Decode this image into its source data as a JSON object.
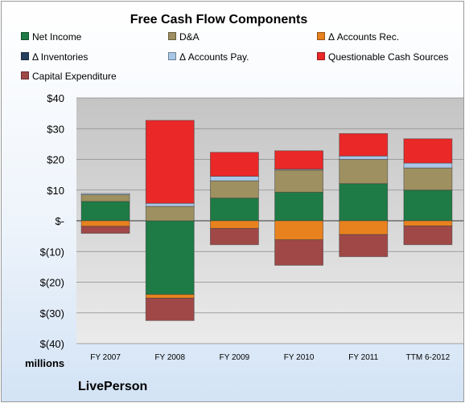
{
  "chart_data": {
    "type": "bar",
    "stacked": true,
    "title": "Free Cash Flow Components",
    "units_label": "millions",
    "company": "LivePerson",
    "categories": [
      "FY 2007",
      "FY 2008",
      "FY 2009",
      "FY 2010",
      "FY 2011",
      "TTM 6-2012"
    ],
    "ylim": [
      -40,
      40
    ],
    "yticks": [
      {
        "value": 40,
        "label": "$40"
      },
      {
        "value": 30,
        "label": "$30"
      },
      {
        "value": 20,
        "label": "$20"
      },
      {
        "value": 10,
        "label": "$10"
      },
      {
        "value": 0,
        "label": "$-"
      },
      {
        "value": -10,
        "label": "$(10)"
      },
      {
        "value": -20,
        "label": "$(20)"
      },
      {
        "value": -30,
        "label": "$(30)"
      },
      {
        "value": -40,
        "label": "$(40)"
      }
    ],
    "grid": true,
    "legend_position": "top",
    "series": [
      {
        "name": "Net Income",
        "color": "#1e7b45",
        "values": [
          6.3,
          -24.0,
          7.4,
          9.3,
          12.1,
          10.0
        ]
      },
      {
        "name": "D&A",
        "color": "#9e9060",
        "values": [
          2.2,
          4.7,
          5.6,
          7.2,
          7.9,
          7.2
        ]
      },
      {
        "name": "Δ Accounts Rec.",
        "color": "#e8821e",
        "values": [
          -1.8,
          -1.2,
          -2.5,
          -6.2,
          -4.5,
          -1.7
        ]
      },
      {
        "name": "Δ Inventories",
        "color": "#24405e",
        "values": [
          0,
          0,
          0,
          0,
          0,
          0
        ]
      },
      {
        "name": "Δ Accounts Pay.",
        "color": "#a9c6e6",
        "values": [
          0.4,
          1.0,
          1.5,
          0.3,
          1.1,
          1.6
        ]
      },
      {
        "name": "Questionable Cash Sources",
        "color": "#ea2828",
        "values": [
          0,
          27.0,
          7.8,
          6.0,
          7.3,
          7.9
        ]
      },
      {
        "name": "Capital Expenditure",
        "color": "#a04848",
        "values": [
          -2.3,
          -7.3,
          -5.3,
          -8.3,
          -7.2,
          -6.1
        ]
      }
    ]
  }
}
